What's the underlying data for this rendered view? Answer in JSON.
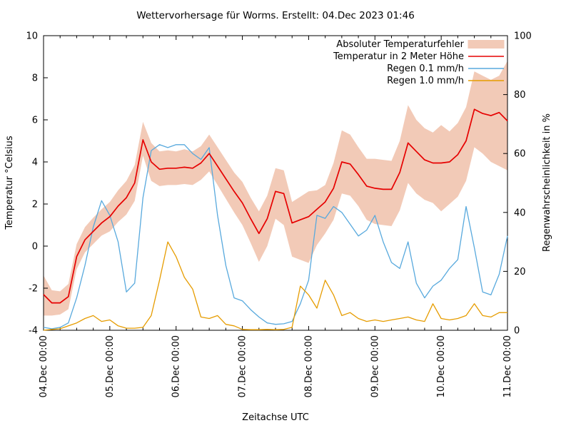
{
  "title": "Wettervorhersage für Worms. Erstellt: 04.Dec 2023 01:46",
  "chart_data": {
    "type": "line",
    "title": "Wettervorhersage für Worms. Erstellt: 04.Dec 2023 01:46",
    "xlabel": "Zeitachse UTC",
    "ylabel_left": "Temperatur °Celsius",
    "ylabel_right": "Regenwahrscheinlichkeit in %",
    "grid": false,
    "legend_position": "top-right-inside",
    "x_ticks": [
      "04.Dec 00:00",
      "05.Dec 00:00",
      "06.Dec 00:00",
      "07.Dec 00:00",
      "08.Dec 00:00",
      "09.Dec 00:00",
      "10.Dec 00:00",
      "11.Dec 00:00"
    ],
    "x_minor_ticks_per_day": 4,
    "y_left": {
      "min": -4,
      "max": 10,
      "ticks": [
        "-4",
        "-2",
        "0",
        "2",
        "4",
        "6",
        "8",
        "10"
      ]
    },
    "y_right": {
      "min": 0,
      "max": 100,
      "ticks": [
        "0",
        "20",
        "40",
        "60",
        "80",
        "100"
      ]
    },
    "sample_interval_hours": 3,
    "time_span_hours": 168,
    "series": [
      {
        "name": "Absoluter Temperaturfehler",
        "type": "band",
        "axis": "left",
        "color": "#f2cab7",
        "upper": [
          -1.4,
          -2.1,
          -2.15,
          -1.8,
          0.1,
          0.9,
          1.35,
          1.75,
          2.1,
          2.65,
          3.1,
          3.85,
          5.9,
          4.9,
          4.5,
          4.55,
          4.5,
          4.6,
          4.5,
          4.75,
          5.3,
          4.7,
          4.1,
          3.5,
          3.05,
          2.3,
          1.65,
          2.4,
          3.7,
          3.6,
          2.1,
          2.35,
          2.6,
          2.65,
          2.9,
          3.95,
          5.5,
          5.3,
          4.7,
          4.15,
          4.15,
          4.1,
          4.05,
          5.0,
          6.7,
          6.0,
          5.6,
          5.4,
          5.75,
          5.45,
          5.85,
          6.6,
          8.3,
          8.1,
          7.9,
          8.1,
          8.8
        ],
        "lower": [
          -3.3,
          -3.3,
          -3.25,
          -3.0,
          -1.1,
          -0.3,
          0.1,
          0.5,
          0.7,
          1.15,
          1.5,
          2.15,
          4.3,
          3.1,
          2.85,
          2.9,
          2.9,
          2.95,
          2.9,
          3.15,
          3.55,
          2.9,
          2.25,
          1.6,
          1.0,
          0.15,
          -0.75,
          0.0,
          1.3,
          1.0,
          -0.5,
          -0.65,
          -0.8,
          0.05,
          0.6,
          1.25,
          2.5,
          2.4,
          1.9,
          1.25,
          1.05,
          1.0,
          0.95,
          1.7,
          3.0,
          2.5,
          2.2,
          2.05,
          1.65,
          2.0,
          2.35,
          3.1,
          4.7,
          4.4,
          4.0,
          3.8,
          3.6
        ]
      },
      {
        "name": "Temperatur in 2 Meter Höhe",
        "type": "line",
        "axis": "left",
        "color": "#e60000",
        "values": [
          -2.3,
          -2.7,
          -2.7,
          -2.4,
          -0.5,
          0.3,
          0.7,
          1.1,
          1.4,
          1.9,
          2.3,
          3.0,
          5.05,
          4.0,
          3.65,
          3.7,
          3.7,
          3.75,
          3.7,
          3.95,
          4.4,
          3.8,
          3.2,
          2.6,
          2.05,
          1.3,
          0.6,
          1.3,
          2.6,
          2.5,
          1.1,
          1.25,
          1.4,
          1.75,
          2.1,
          2.75,
          4.0,
          3.9,
          3.4,
          2.85,
          2.75,
          2.7,
          2.7,
          3.5,
          4.9,
          4.5,
          4.1,
          3.95,
          3.95,
          4.0,
          4.35,
          5.0,
          6.5,
          6.3,
          6.2,
          6.35,
          5.95
        ]
      },
      {
        "name": "Regen 0.1 mm/h",
        "type": "line",
        "axis": "right",
        "color": "#58a9dd",
        "values": [
          1,
          0.5,
          1,
          2.5,
          11,
          22,
          35,
          44,
          39,
          30,
          13,
          16,
          45,
          61,
          63,
          62,
          63,
          63,
          60,
          58,
          62,
          39,
          22,
          11,
          10,
          7,
          4.5,
          2.5,
          2,
          2.2,
          3,
          9,
          17,
          39,
          38,
          42,
          40,
          36,
          32,
          34,
          39,
          30,
          23,
          21,
          30,
          16,
          11,
          15,
          17,
          21,
          24,
          42,
          28,
          13,
          12,
          19,
          32
        ]
      },
      {
        "name": "Regen 1.0 mm/h",
        "type": "line",
        "axis": "right",
        "color": "#e69c00",
        "values": [
          0,
          0.3,
          0.5,
          1.5,
          2.5,
          4,
          5,
          3,
          3.5,
          1.5,
          0.7,
          0.7,
          1,
          5,
          17,
          30,
          25,
          18,
          14,
          4.5,
          4,
          5,
          2,
          1.5,
          0.3,
          0.2,
          0.2,
          0.3,
          0.2,
          0.3,
          1,
          15,
          12,
          7.5,
          17,
          12,
          5,
          6,
          4,
          3,
          3.5,
          3,
          3.5,
          4,
          4.5,
          3.5,
          3,
          9,
          4,
          3.5,
          4,
          5,
          9,
          5,
          4.5,
          6,
          6
        ]
      }
    ]
  }
}
